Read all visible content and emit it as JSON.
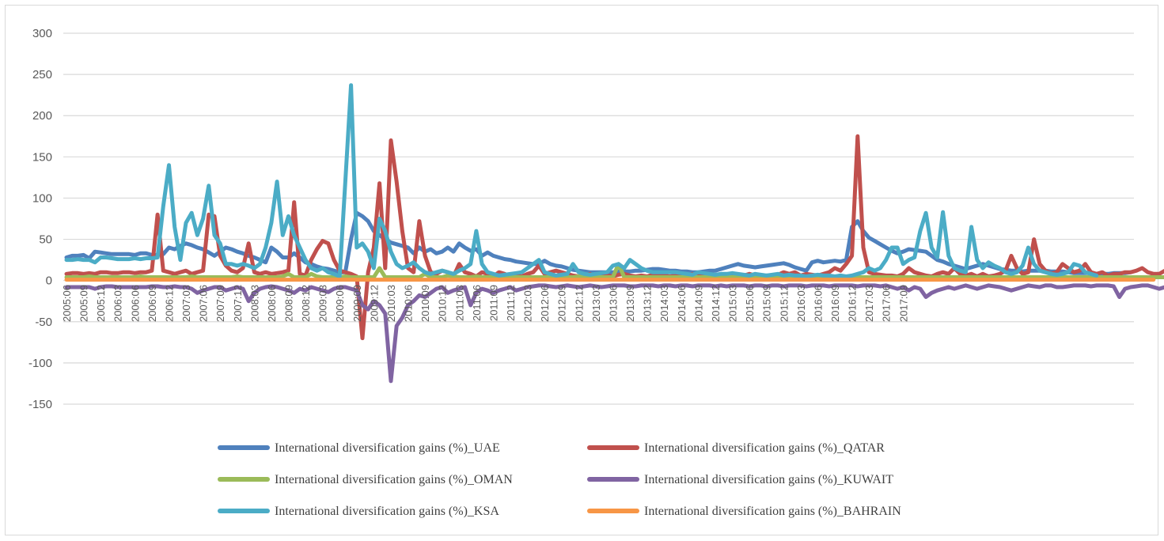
{
  "chart_data": {
    "type": "line",
    "title": "",
    "xlabel": "",
    "ylabel": "",
    "ylim": [
      -150,
      300
    ],
    "yticks": [
      300,
      250,
      200,
      150,
      100,
      50,
      0,
      -50,
      -100,
      -150
    ],
    "grid": true,
    "legend_position": "bottom",
    "x_tick_labels": [
      "2005:06",
      "2005:09",
      "2005:12",
      "2006:03",
      "2006:06",
      "2006:09",
      "2006:12",
      "2007:03",
      "2007:06",
      "2007:09",
      "2007:12",
      "2008:03",
      "2008:06",
      "2008:09",
      "2008:12",
      "2009:03",
      "2009:06",
      "2009:09",
      "2009:12",
      "2010:03",
      "2010:06",
      "2010:09",
      "2010:12",
      "2011:03",
      "2011:06",
      "2011:09",
      "2011:12",
      "2012:03",
      "2012:06",
      "2012:09",
      "2012:12",
      "2013:03",
      "2013:06",
      "2013:09",
      "2013:12",
      "2014:03",
      "2014:06",
      "2014:09",
      "2014:12",
      "2015:03",
      "2015:06",
      "2015:09",
      "2015:12",
      "2016:03",
      "2016:06",
      "2016:09",
      "2016:12",
      "2017:03",
      "2017:06",
      "2017:09"
    ],
    "x_tick_start_month": 6,
    "x_start_year": 2005,
    "series": [
      {
        "name": "International diversification gains (%)_UAE",
        "color": "#4F81BD",
        "values": [
          28,
          30,
          30,
          31,
          27,
          35,
          34,
          33,
          32,
          32,
          32,
          32,
          31,
          33,
          33,
          31,
          31,
          32,
          40,
          38,
          42,
          45,
          43,
          40,
          38,
          34,
          30,
          35,
          40,
          38,
          35,
          33,
          30,
          28,
          25,
          22,
          40,
          35,
          28,
          28,
          33,
          28,
          22,
          20,
          17,
          15,
          14,
          12,
          10,
          10,
          50,
          82,
          78,
          72,
          60,
          55,
          50,
          46,
          44,
          42,
          40,
          33,
          40,
          35,
          38,
          33,
          35,
          40,
          35,
          45,
          40,
          36,
          38,
          30,
          34,
          30,
          28,
          26,
          25,
          23,
          22,
          21,
          20,
          20,
          24,
          20,
          18,
          17,
          15,
          13,
          12,
          11,
          10,
          10,
          10,
          10,
          10,
          11,
          11,
          11,
          12,
          12,
          13,
          14,
          14,
          13,
          12,
          12,
          11,
          11,
          10,
          10,
          11,
          12,
          12,
          14,
          16,
          18,
          20,
          18,
          17,
          16,
          17,
          18,
          19,
          20,
          21,
          19,
          16,
          14,
          12,
          22,
          24,
          22,
          23,
          24,
          23,
          25,
          65,
          72,
          60,
          52,
          48,
          44,
          40,
          36,
          33,
          35,
          38,
          37,
          36,
          35,
          30,
          25,
          23,
          20,
          18,
          16,
          14,
          16,
          18,
          20,
          18,
          16,
          14,
          13,
          12,
          12,
          11,
          12,
          12,
          12,
          12,
          11,
          11,
          11,
          10,
          9,
          9,
          9,
          9,
          8,
          8,
          8,
          9,
          9,
          9,
          10
        ]
      },
      {
        "name": "International diversification gains (%)_QATAR",
        "color": "#C0504D",
        "values": [
          8,
          9,
          9,
          8,
          9,
          8,
          10,
          10,
          9,
          9,
          10,
          10,
          9,
          10,
          10,
          12,
          80,
          12,
          10,
          8,
          10,
          12,
          8,
          10,
          12,
          80,
          78,
          30,
          18,
          12,
          10,
          15,
          45,
          10,
          8,
          10,
          8,
          9,
          10,
          12,
          95,
          8,
          6,
          25,
          38,
          48,
          45,
          25,
          12,
          10,
          8,
          5,
          -70,
          10,
          40,
          118,
          15,
          170,
          120,
          60,
          15,
          10,
          72,
          30,
          10,
          8,
          12,
          10,
          5,
          20,
          10,
          8,
          5,
          10,
          8,
          5,
          10,
          8,
          5,
          6,
          5,
          8,
          10,
          18,
          8,
          10,
          12,
          10,
          8,
          6,
          5,
          6,
          8,
          5,
          6,
          6,
          5,
          7,
          8,
          6,
          5,
          6,
          5,
          7,
          8,
          6,
          5,
          6,
          8,
          6,
          8,
          5,
          6,
          7,
          6,
          5,
          6,
          7,
          5,
          6,
          8,
          6,
          5,
          6,
          6,
          7,
          10,
          8,
          10,
          6,
          8,
          7,
          6,
          8,
          10,
          15,
          12,
          20,
          30,
          175,
          40,
          10,
          8,
          7,
          6,
          6,
          5,
          8,
          15,
          10,
          8,
          6,
          5,
          8,
          10,
          8,
          15,
          8,
          6,
          8,
          5,
          8,
          5,
          6,
          8,
          12,
          30,
          15,
          8,
          10,
          50,
          20,
          12,
          8,
          10,
          20,
          15,
          10,
          12,
          20,
          10,
          8,
          10,
          6,
          8,
          8,
          10,
          10,
          12,
          15,
          10,
          8,
          8,
          12,
          10,
          6,
          5,
          8,
          20,
          18,
          15,
          10
        ]
      },
      {
        "name": "International diversification gains (%)_OMAN",
        "color": "#9BBB59",
        "values": [
          4,
          4,
          4,
          4,
          5,
          4,
          4,
          4,
          4,
          4,
          4,
          4,
          4,
          5,
          4,
          4,
          4,
          4,
          4,
          4,
          4,
          4,
          5,
          4,
          4,
          4,
          4,
          4,
          4,
          4,
          5,
          4,
          4,
          4,
          4,
          4,
          4,
          4,
          5,
          8,
          4,
          4,
          4,
          8,
          5,
          4,
          4,
          4,
          4,
          5,
          4,
          4,
          4,
          4,
          4,
          15,
          4,
          4,
          4,
          4,
          4,
          4,
          4,
          8,
          4,
          4,
          4,
          6,
          5,
          4,
          4,
          4,
          5,
          4,
          4,
          4,
          4,
          4,
          4,
          4,
          4,
          4,
          4,
          4,
          4,
          4,
          4,
          4,
          4,
          4,
          5,
          4,
          4,
          4,
          4,
          4,
          4,
          20,
          4,
          4,
          4,
          4,
          4,
          4,
          4,
          4,
          4,
          4,
          4,
          4,
          4,
          4,
          4,
          4,
          4,
          4,
          4,
          4,
          4,
          4,
          4,
          4,
          4,
          4,
          4,
          4,
          4,
          4,
          4,
          4,
          4,
          4,
          4,
          4,
          4,
          4,
          4,
          4,
          4,
          4,
          4,
          4,
          4,
          4,
          4,
          4,
          4,
          4,
          4,
          4,
          4,
          4,
          4,
          4,
          4,
          4,
          4,
          4,
          4,
          4,
          4,
          4,
          4,
          4,
          4,
          4,
          4,
          4,
          4,
          4,
          4,
          4,
          4,
          4,
          4,
          4,
          4,
          4,
          4,
          4,
          4,
          4,
          4,
          4,
          4,
          4,
          4,
          4,
          4,
          4,
          4,
          4,
          4,
          4,
          4,
          4,
          4,
          4,
          4
        ]
      },
      {
        "name": "International diversification gains (%)_KUWAIT",
        "color": "#8064A2",
        "values": [
          -8,
          -8,
          -8,
          -8,
          -8,
          -10,
          -8,
          -7,
          -7,
          -8,
          -8,
          -8,
          -8,
          -8,
          -8,
          -7,
          -7,
          -8,
          -8,
          -7,
          -8,
          -8,
          -10,
          -15,
          -12,
          -10,
          -8,
          -8,
          -12,
          -10,
          -8,
          -10,
          -25,
          -15,
          -10,
          -8,
          -7,
          -8,
          -10,
          -12,
          -15,
          -10,
          -12,
          -8,
          -10,
          -12,
          -14,
          -10,
          -8,
          -8,
          -10,
          -12,
          -30,
          -35,
          -25,
          -30,
          -40,
          -122,
          -55,
          -45,
          -30,
          -25,
          -18,
          -20,
          -15,
          -10,
          -8,
          -15,
          -12,
          -10,
          -8,
          -30,
          -15,
          -10,
          -12,
          -15,
          -12,
          -10,
          -8,
          -12,
          -10,
          -8,
          -7,
          -6,
          -6,
          -7,
          -8,
          -7,
          -6,
          -7,
          -8,
          -7,
          -6,
          -7,
          -8,
          -7,
          -6,
          -6,
          -6,
          -7,
          -7,
          -6,
          -6,
          -6,
          -7,
          -6,
          -6,
          -7,
          -6,
          -6,
          -7,
          -6,
          -6,
          -6,
          -7,
          -6,
          -7,
          -6,
          -6,
          -6,
          -7,
          -6,
          -6,
          -7,
          -6,
          -6,
          -7,
          -6,
          -6,
          -6,
          -7,
          -6,
          -6,
          -6,
          -7,
          -6,
          -6,
          -6,
          -6,
          -7,
          -6,
          -6,
          -6,
          -7,
          -6,
          -8,
          -10,
          -8,
          -12,
          -8,
          -10,
          -20,
          -15,
          -12,
          -10,
          -8,
          -10,
          -8,
          -6,
          -8,
          -10,
          -8,
          -6,
          -7,
          -8,
          -10,
          -12,
          -10,
          -8,
          -6,
          -7,
          -8,
          -6,
          -6,
          -8,
          -8,
          -7,
          -6,
          -6,
          -6,
          -7,
          -6,
          -6,
          -6,
          -7,
          -20,
          -10,
          -8,
          -7,
          -6,
          -6,
          -8,
          -10,
          -8,
          -6,
          -5
        ]
      },
      {
        "name": "International diversification gains (%)_KSA",
        "color": "#4BACC6",
        "values": [
          25,
          25,
          26,
          25,
          25,
          22,
          28,
          28,
          27,
          26,
          26,
          26,
          27,
          26,
          27,
          27,
          28,
          90,
          140,
          65,
          25,
          70,
          82,
          55,
          75,
          115,
          55,
          45,
          20,
          20,
          18,
          20,
          18,
          15,
          20,
          40,
          70,
          120,
          55,
          78,
          55,
          40,
          25,
          15,
          12,
          15,
          10,
          8,
          5,
          120,
          237,
          40,
          45,
          35,
          15,
          75,
          60,
          35,
          20,
          15,
          18,
          22,
          15,
          10,
          8,
          10,
          12,
          10,
          8,
          12,
          15,
          20,
          60,
          20,
          10,
          8,
          6,
          7,
          8,
          9,
          10,
          15,
          20,
          25,
          10,
          8,
          6,
          7,
          8,
          20,
          10,
          8,
          7,
          8,
          9,
          10,
          18,
          20,
          15,
          25,
          20,
          15,
          12,
          10,
          10,
          10,
          10,
          10,
          9,
          8,
          7,
          10,
          9,
          8,
          7,
          8,
          8,
          9,
          8,
          7,
          6,
          8,
          7,
          6,
          7,
          8,
          6,
          7,
          6,
          6,
          5,
          6,
          7,
          6,
          6,
          5,
          6,
          5,
          6,
          8,
          10,
          15,
          12,
          15,
          25,
          40,
          40,
          20,
          25,
          28,
          60,
          82,
          40,
          28,
          83,
          30,
          15,
          12,
          10,
          65,
          25,
          15,
          22,
          18,
          15,
          10,
          8,
          10,
          18,
          40,
          20,
          12,
          10,
          8,
          7,
          8,
          10,
          20,
          18,
          10,
          8,
          6
        ]
      },
      {
        "name": "International diversification gains (%)_BAHRAIN",
        "color": "#F79646",
        "values": [
          1,
          1,
          1,
          1,
          1,
          1,
          1,
          1,
          1,
          1,
          1,
          1,
          1,
          1,
          1,
          1,
          1,
          1,
          1,
          1,
          1,
          1,
          1,
          1,
          1,
          1,
          1,
          1,
          1,
          1,
          1,
          1,
          1,
          1,
          1,
          1,
          1,
          1,
          1,
          1,
          1,
          1,
          1,
          1,
          1,
          1,
          1,
          1,
          1,
          1,
          1,
          1,
          1,
          1,
          1,
          1,
          1,
          1,
          1,
          1,
          1,
          1,
          1,
          1,
          1,
          1,
          1,
          1,
          1,
          1,
          1,
          1,
          1,
          1,
          1,
          1,
          1,
          1,
          1,
          1,
          1,
          1,
          1,
          1,
          1,
          1,
          1,
          1,
          1,
          1,
          1,
          1,
          1,
          1,
          1,
          1,
          1,
          1,
          1,
          1,
          1,
          1,
          1,
          1,
          1,
          1,
          1,
          1,
          1,
          1,
          1,
          1,
          1,
          1,
          1,
          1,
          1,
          1,
          1,
          1,
          1,
          1,
          1,
          1,
          1,
          1,
          1,
          1,
          1,
          1,
          1,
          1,
          1,
          1,
          1,
          1,
          1,
          1,
          1,
          1,
          1,
          1,
          1,
          1,
          1,
          1,
          1,
          1,
          1,
          1,
          1,
          1,
          1,
          1,
          1,
          1,
          1,
          1,
          1,
          1,
          1,
          1,
          1,
          1,
          1,
          1,
          1,
          1,
          1,
          1,
          1,
          1,
          1,
          1,
          1,
          1,
          1,
          1,
          1,
          1,
          1,
          1,
          1,
          1,
          1,
          1,
          1,
          1,
          1,
          1,
          1,
          1
        ]
      }
    ]
  }
}
